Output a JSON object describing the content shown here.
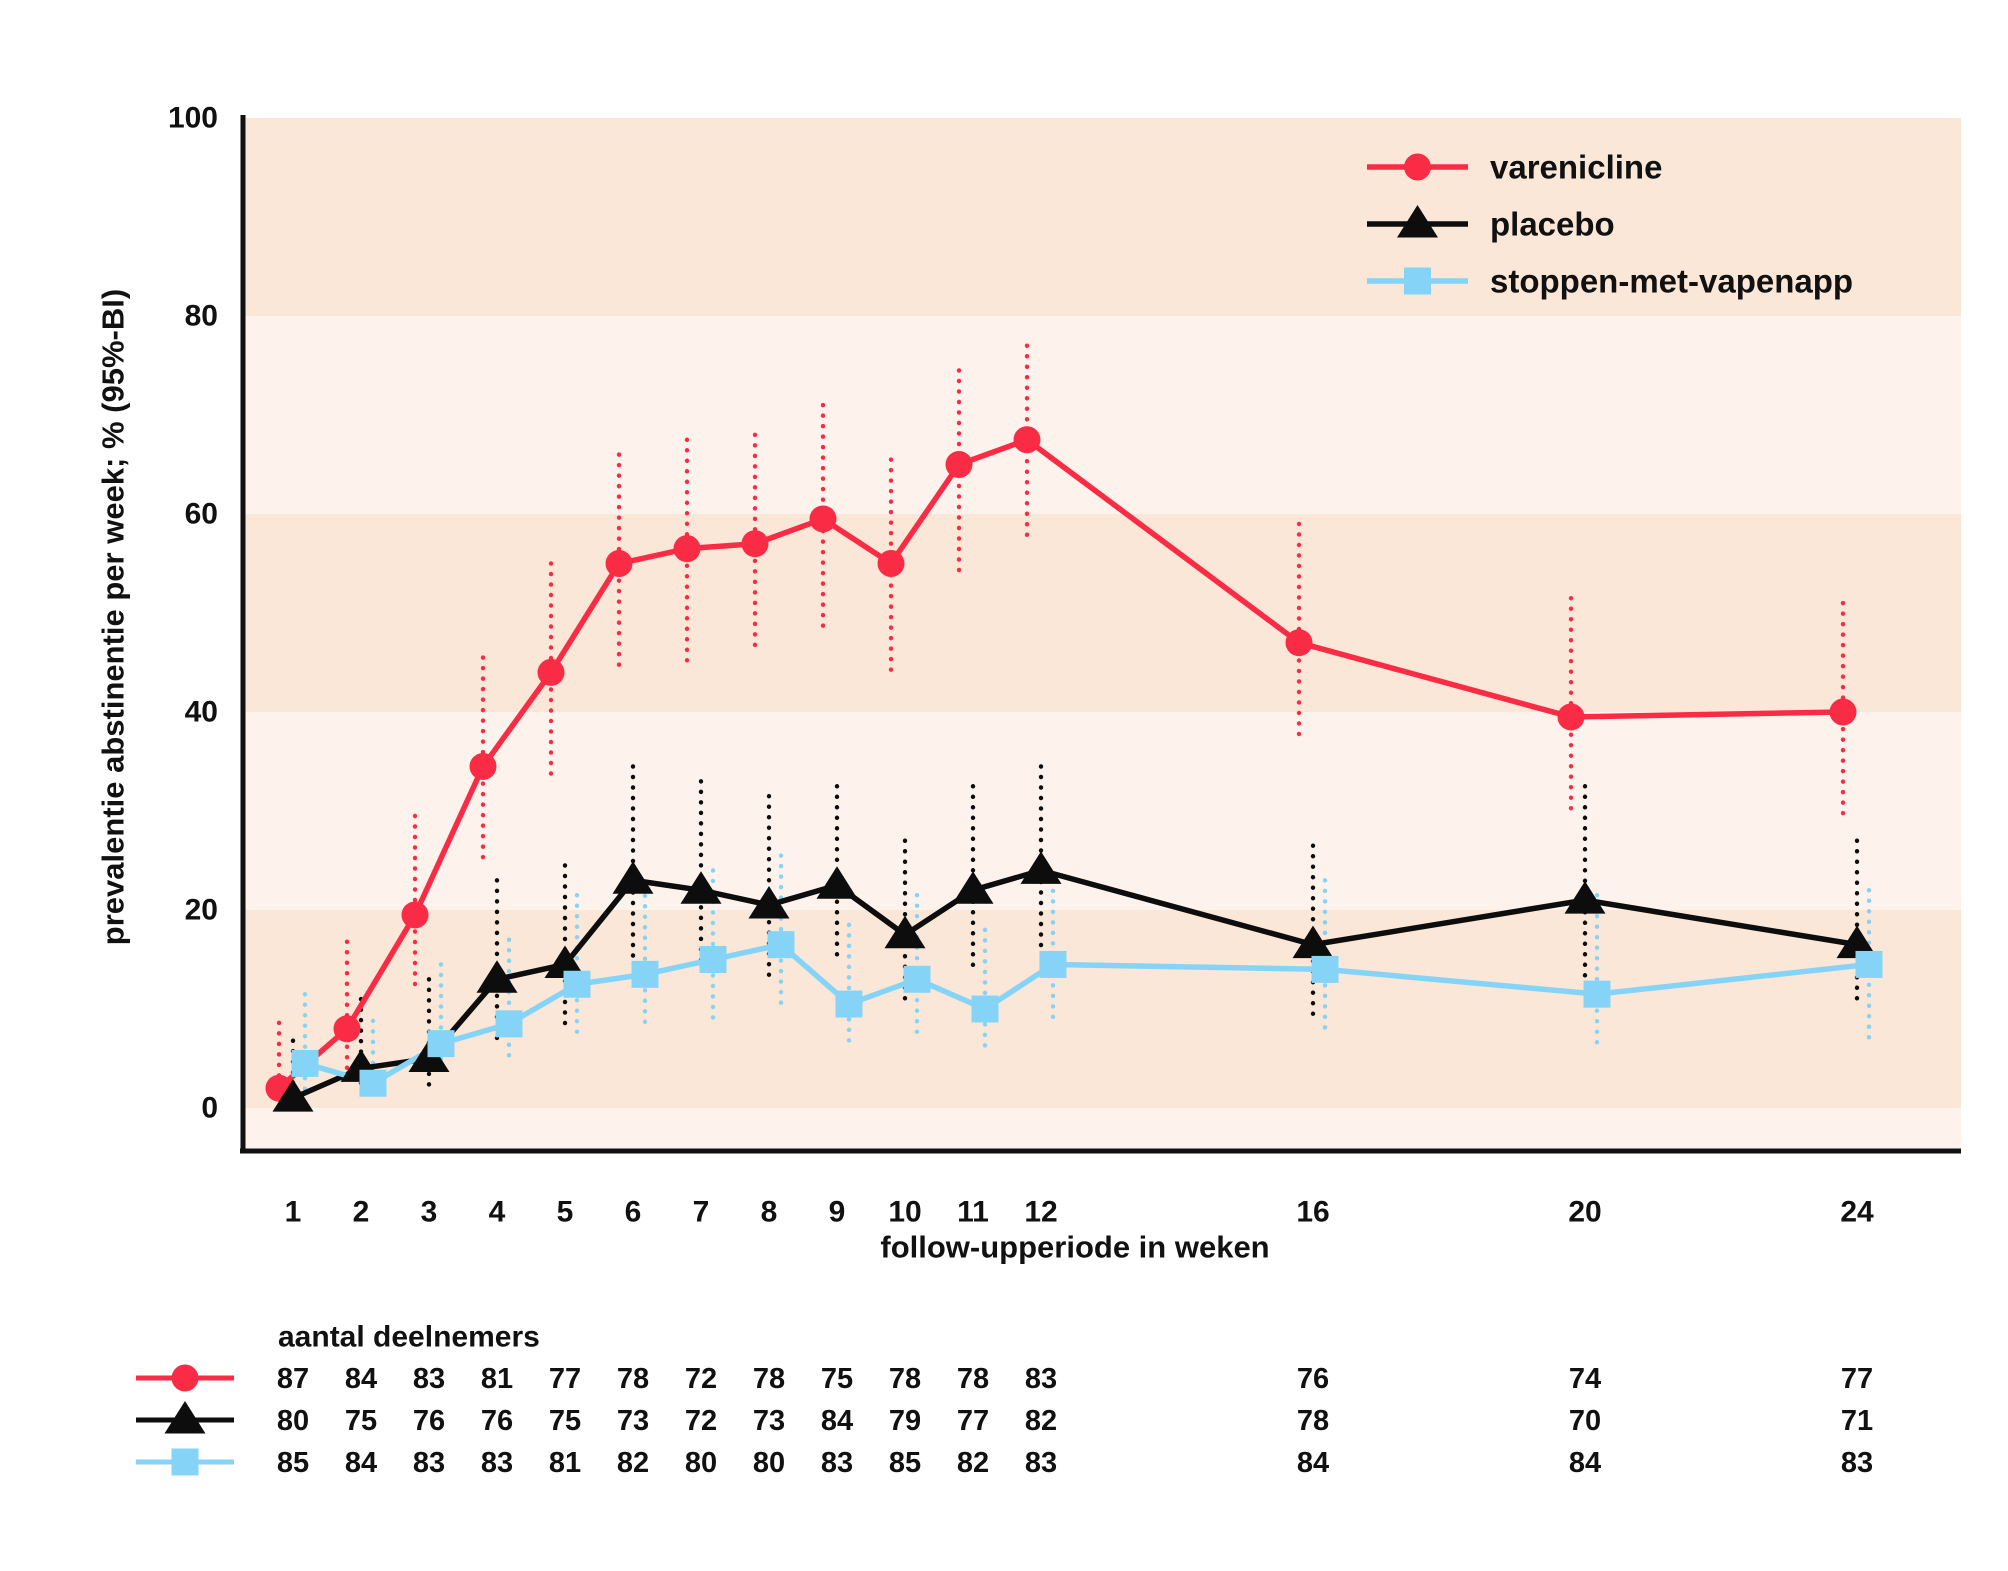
{
  "page": {
    "background": "#FFFFFF"
  },
  "colors": {
    "varenicline_red": "#FA2B45",
    "placebo_black": "#0D0D0D",
    "vapenapp_blue": "#85D4F7",
    "band_dark": "#FAE7D7",
    "band_light": "#FDF3EC",
    "axis_line": "#111111",
    "text": "#111111"
  },
  "chart_data": {
    "type": "line",
    "title": "",
    "ylabel": "prevalentie abstinentie per week; % (95%-BI)",
    "xlabel": "follow-upperiode in weken",
    "ylim": [
      0,
      100
    ],
    "y_ticks": [
      0,
      20,
      40,
      60,
      80,
      100
    ],
    "x": [
      1,
      2,
      3,
      4,
      5,
      6,
      7,
      8,
      9,
      10,
      11,
      12,
      16,
      20,
      24
    ],
    "x_tick_labels": [
      "1",
      "2",
      "3",
      "4",
      "5",
      "6",
      "7",
      "8",
      "9",
      "10",
      "11",
      "12",
      "16",
      "20",
      "24"
    ],
    "grid": "off",
    "background_bands": {
      "dark": "#FAE7D7",
      "light": "#FDF3EC",
      "top_band": "dark",
      "band_step": 20
    },
    "legend_position": "top-right-inside",
    "error_bars": "95%-BI dotted vertical lines",
    "series": [
      {
        "name": "varenicline",
        "color": "#FA2B45",
        "marker": "circle",
        "values": [
          2,
          8,
          19.5,
          34.5,
          44,
          55,
          56.5,
          57,
          59.5,
          55,
          65,
          67.5,
          47,
          39.5,
          40
        ],
        "ci_low": [
          0.5,
          4,
          12,
          25,
          33.5,
          44,
          45,
          46,
          48,
          43.5,
          53.5,
          57,
          37,
          29.5,
          29.5
        ],
        "ci_high": [
          8.6,
          16.8,
          29.5,
          45.5,
          55,
          66,
          67.5,
          68,
          71,
          65.5,
          74.5,
          77,
          59,
          51.5,
          51
        ],
        "participants": [
          87,
          84,
          83,
          81,
          77,
          78,
          72,
          78,
          75,
          78,
          78,
          83,
          76,
          74,
          77
        ]
      },
      {
        "name": "placebo",
        "color": "#0D0D0D",
        "marker": "triangle",
        "values": [
          1,
          4,
          5,
          13,
          14.5,
          23,
          22,
          20.5,
          22.5,
          17.5,
          22,
          24,
          16.5,
          21,
          16.5
        ],
        "ci_low": [
          0.2,
          1.5,
          2,
          7,
          8,
          14.5,
          14,
          13,
          14.5,
          10.5,
          14,
          16,
          9.5,
          13,
          10.5
        ],
        "ci_high": [
          6.8,
          11,
          13,
          23,
          24.5,
          34.5,
          33,
          31.5,
          32.5,
          27,
          32.5,
          34.5,
          26.5,
          32.5,
          27
        ],
        "participants": [
          80,
          75,
          76,
          76,
          75,
          73,
          72,
          73,
          84,
          79,
          77,
          82,
          78,
          70,
          71
        ]
      },
      {
        "name": "stoppen-met-vapenapp",
        "color": "#85D4F7",
        "marker": "square",
        "values": [
          4.5,
          2.5,
          6.5,
          8.5,
          12.5,
          13.5,
          15,
          16.5,
          10.5,
          13,
          10,
          14.5,
          14,
          11.5,
          14.5
        ],
        "ci_low": [
          1.8,
          0.8,
          3,
          4.3,
          7,
          7.8,
          9,
          10.3,
          5.8,
          7.5,
          5.5,
          9,
          8,
          6,
          7
        ],
        "ci_high": [
          11.5,
          8.8,
          14.5,
          17,
          21.5,
          22.5,
          24,
          25.5,
          18.5,
          21.5,
          18,
          23,
          23,
          21.5,
          22
        ],
        "participants": [
          85,
          84,
          83,
          83,
          81,
          82,
          80,
          80,
          83,
          85,
          82,
          83,
          84,
          84,
          83
        ]
      }
    ],
    "participants_table": {
      "heading": "aantal deelnemers"
    }
  }
}
